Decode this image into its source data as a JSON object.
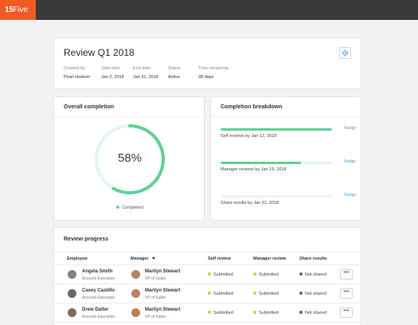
{
  "brand": {
    "logo_bold": "15",
    "logo_thin": "Five",
    "color": "#f15a24"
  },
  "review": {
    "title": "Review Q1 2018",
    "settings_icon": "gear-icon",
    "meta": [
      {
        "label": "Created by",
        "value": "Pearl Hudson"
      },
      {
        "label": "Start date",
        "value": "Jan 2, 2018"
      },
      {
        "label": "End date",
        "value": "Jan 31, 2018"
      },
      {
        "label": "Status",
        "value": "Active"
      },
      {
        "label": "Time remaining",
        "value": "28 days"
      }
    ]
  },
  "overall": {
    "title": "Overall completion",
    "percent_label": "58%",
    "percent": 0.58,
    "legend": "Completed",
    "colors": {
      "done": "#5fd097",
      "track": "#e3f6ec"
    }
  },
  "breakdown": {
    "title": "Completion breakdown",
    "items": [
      {
        "caption": "Self reviews by Jan 12, 2018",
        "action": "Nudge",
        "fill": 1.0
      },
      {
        "caption": "Manager reviews by Jan 19, 2018",
        "action": "Nudge",
        "fill": 0.72
      },
      {
        "caption": "Share results by Jan 31, 2018",
        "action": "Nudge",
        "fill": 0.0
      }
    ]
  },
  "progress": {
    "title": "Review progress",
    "columns": {
      "employee": "Employee",
      "manager": "Manager",
      "self": "Self review",
      "mgr": "Manager review",
      "share": "Share results"
    },
    "rows": [
      {
        "employee": "Angela Smith",
        "employee_role": "Account Executive",
        "manager": "Marilyn Stewart",
        "manager_role": "VP of Sales",
        "self": "Submitted",
        "mgr": "Submitted",
        "share": "Not shared",
        "more": "•••"
      },
      {
        "employee": "Casey Castillo",
        "employee_role": "Account Executive",
        "manager": "Marilyn Stewart",
        "manager_role": "VP of Sales",
        "self": "Submitted",
        "mgr": "Submitted",
        "share": "Not shared",
        "more": "•••"
      },
      {
        "employee": "Drew Dalter",
        "employee_role": "Account Executive",
        "manager": "Marilyn Stewart",
        "manager_role": "VP of Sales",
        "self": "Submitted",
        "mgr": "Submitted",
        "share": "Not shared",
        "more": "•••"
      }
    ],
    "status_colors": {
      "submitted": "#c6d93a",
      "not_shared": "#5b6b78"
    }
  }
}
